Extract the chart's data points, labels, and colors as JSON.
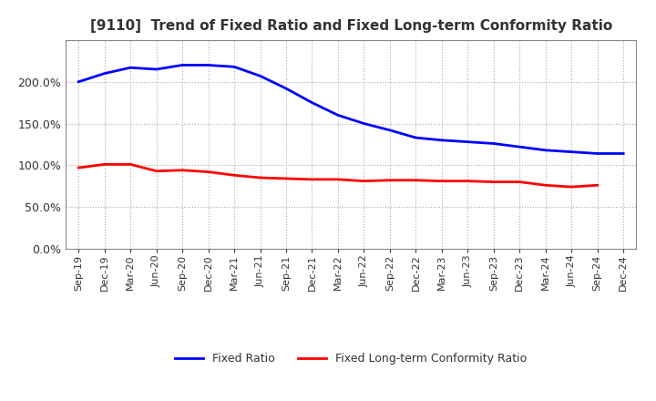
{
  "title": "[9110]  Trend of Fixed Ratio and Fixed Long-term Conformity Ratio",
  "x_labels": [
    "Sep-19",
    "Dec-19",
    "Mar-20",
    "Jun-20",
    "Sep-20",
    "Dec-20",
    "Mar-21",
    "Jun-21",
    "Sep-21",
    "Dec-21",
    "Mar-22",
    "Jun-22",
    "Sep-22",
    "Dec-22",
    "Mar-23",
    "Jun-23",
    "Sep-23",
    "Dec-23",
    "Mar-24",
    "Jun-24",
    "Sep-24",
    "Dec-24"
  ],
  "fixed_ratio": [
    200.0,
    210.0,
    217.0,
    215.0,
    220.0,
    220.0,
    218.0,
    207.0,
    192.0,
    175.0,
    160.0,
    150.0,
    142.0,
    133.0,
    130.0,
    128.0,
    126.0,
    122.0,
    118.0,
    116.0,
    114.0,
    114.0
  ],
  "fixed_lt_ratio": [
    97.0,
    101.0,
    101.0,
    93.0,
    94.0,
    92.0,
    88.0,
    85.0,
    84.0,
    83.0,
    83.0,
    81.0,
    82.0,
    82.0,
    81.0,
    81.0,
    80.0,
    80.0,
    76.0,
    74.0,
    76.0,
    null
  ],
  "fixed_ratio_color": "#0000FF",
  "fixed_lt_ratio_color": "#FF0000",
  "ylim": [
    0.0,
    250.0
  ],
  "yticks": [
    0.0,
    50.0,
    100.0,
    150.0,
    200.0
  ],
  "background_color": "#FFFFFF",
  "grid_color": "#AAAAAA",
  "legend_labels": [
    "Fixed Ratio",
    "Fixed Long-term Conformity Ratio"
  ]
}
